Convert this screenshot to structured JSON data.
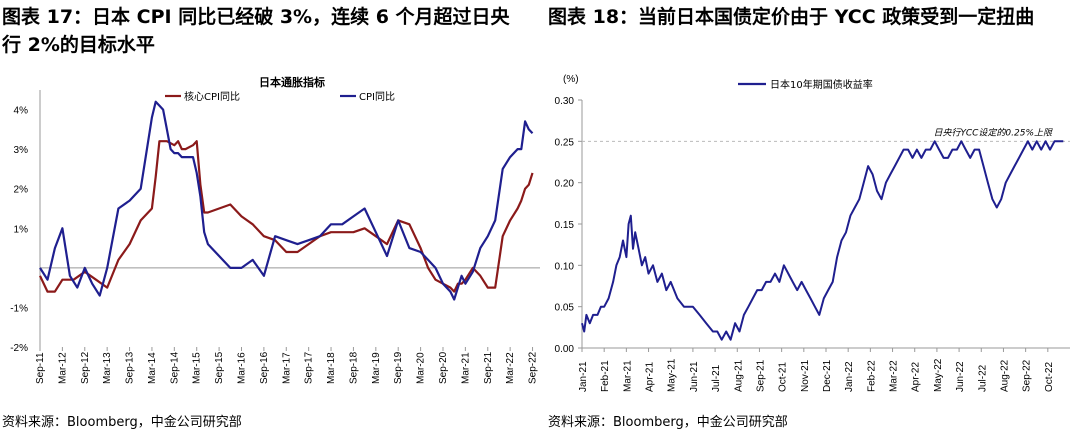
{
  "figures": [
    {
      "title": "图表 17：日本 CPI 同比已经破 3%，连续 6 个月超过日央行 2%的目标水平",
      "source": "资料来源：Bloomberg，中金公司研究部"
    },
    {
      "title": "图表 18：当前日本国债定价由于 YCC 政策受到一定扭曲",
      "source": "资料来源：Bloomberg，中金公司研究部"
    }
  ],
  "chart_data": [
    {
      "type": "line",
      "title": "日本通胀指标",
      "xlabel": "",
      "ylabel": "",
      "x_ticks": [
        "Sep-11",
        "Mar-12",
        "Sep-12",
        "Mar-13",
        "Sep-13",
        "Mar-14",
        "Sep-14",
        "Mar-15",
        "Sep-15",
        "Mar-16",
        "Sep-16",
        "Mar-17",
        "Sep-17",
        "Mar-18",
        "Sep-18",
        "Mar-19",
        "Sep-19",
        "Mar-20",
        "Sep-20",
        "Mar-21",
        "Sep-21",
        "Mar-22",
        "Sep-22"
      ],
      "y_ticks": [
        "4%",
        "3%",
        "2%",
        "1%",
        "-1%",
        "-2%"
      ],
      "y_tick_values": [
        4,
        3,
        2,
        1,
        -1,
        -2
      ],
      "ylim": [
        -2,
        5
      ],
      "legend_position": "top",
      "x": [
        0,
        6,
        12,
        18,
        24,
        30,
        36,
        42,
        48,
        54,
        60,
        66,
        72,
        78,
        84,
        90,
        96,
        102,
        108,
        114,
        120,
        126,
        132
      ],
      "series": [
        {
          "name": "核心CPI同比",
          "color": "#8B1A1A",
          "x": [
            0,
            2,
            4,
            6,
            9,
            12,
            15,
            18,
            21,
            24,
            27,
            30,
            31,
            32,
            33,
            34,
            36,
            37,
            38,
            39,
            41,
            42,
            43,
            44,
            45,
            48,
            51,
            54,
            57,
            60,
            63,
            66,
            69,
            72,
            75,
            78,
            81,
            84,
            87,
            90,
            93,
            96,
            99,
            102,
            104,
            106,
            108,
            110,
            111,
            112,
            113,
            114,
            116,
            118,
            120,
            122,
            124,
            126,
            128,
            129,
            130,
            131,
            132
          ],
          "values": [
            -0.2,
            -0.6,
            -0.6,
            -0.3,
            -0.3,
            -0.1,
            -0.3,
            -0.5,
            0.2,
            0.6,
            1.2,
            1.5,
            2.3,
            3.2,
            3.2,
            3.2,
            3.1,
            3.2,
            3.0,
            3.0,
            3.1,
            3.2,
            2.1,
            1.4,
            1.4,
            1.5,
            1.6,
            1.3,
            1.1,
            0.8,
            0.7,
            0.4,
            0.4,
            0.6,
            0.8,
            0.9,
            0.9,
            0.9,
            1.0,
            0.8,
            0.6,
            1.2,
            1.1,
            0.5,
            0.0,
            -0.3,
            -0.4,
            -0.5,
            -0.6,
            -0.4,
            -0.4,
            -0.3,
            0.0,
            -0.2,
            -0.5,
            -0.5,
            0.8,
            1.2,
            1.5,
            1.7,
            2.0,
            2.1,
            2.4
          ]
        },
        {
          "name": "CPI同比",
          "color": "#1F1F8F",
          "x": [
            0,
            2,
            4,
            6,
            8,
            10,
            12,
            14,
            16,
            18,
            21,
            24,
            27,
            30,
            31,
            32,
            33,
            34,
            35,
            36,
            37,
            38,
            39,
            41,
            42,
            43,
            44,
            45,
            48,
            51,
            54,
            57,
            60,
            63,
            66,
            69,
            72,
            75,
            78,
            81,
            84,
            87,
            90,
            93,
            96,
            99,
            102,
            104,
            106,
            108,
            110,
            111,
            112,
            113,
            114,
            116,
            118,
            120,
            122,
            124,
            126,
            128,
            129,
            130,
            131,
            132
          ],
          "values": [
            0.0,
            -0.3,
            0.5,
            1.0,
            -0.2,
            -0.5,
            0.0,
            -0.4,
            -0.7,
            0.0,
            1.5,
            1.7,
            2.0,
            3.8,
            4.2,
            4.1,
            4.0,
            3.5,
            3.0,
            2.9,
            2.9,
            2.8,
            2.8,
            2.8,
            2.4,
            1.8,
            0.9,
            0.6,
            0.3,
            0.0,
            0.0,
            0.2,
            -0.2,
            0.8,
            0.7,
            0.6,
            0.7,
            0.8,
            1.1,
            1.1,
            1.3,
            1.5,
            0.9,
            0.3,
            1.2,
            0.5,
            0.4,
            0.2,
            0.0,
            -0.4,
            -0.6,
            -0.8,
            -0.5,
            -0.2,
            -0.4,
            -0.1,
            0.5,
            0.8,
            1.2,
            2.5,
            2.8,
            3.0,
            3.0,
            3.7,
            3.5,
            3.4
          ]
        }
      ]
    },
    {
      "type": "line",
      "title": "",
      "xlabel": "",
      "ylabel": "(%)",
      "x_ticks": [
        "Jan-21",
        "Feb-21",
        "Mar-21",
        "Apr-21",
        "May-21",
        "Jun-21",
        "Jul-21",
        "Aug-21",
        "Sep-21",
        "Oct-21",
        "Nov-21",
        "Dec-21",
        "Jan-22",
        "Feb-22",
        "Mar-22",
        "Apr-22",
        "May-22",
        "Jun-22",
        "Jul-22",
        "Aug-22",
        "Sep-22",
        "Oct-22"
      ],
      "y_ticks": [
        "0.30",
        "0.25",
        "0.20",
        "0.15",
        "0.10",
        "0.05",
        "0.00"
      ],
      "y_tick_values": [
        0.3,
        0.25,
        0.2,
        0.15,
        0.1,
        0.05,
        0.0
      ],
      "ylim": [
        0.0,
        0.3
      ],
      "legend_position": "top-left",
      "reference_line": {
        "value": 0.25,
        "label": "日央行YCC设定的0.25%上限",
        "style": "dashed",
        "color": "#BBBBBB"
      },
      "series": [
        {
          "name": "日本10年期国债收益率",
          "color": "#1F1F8F",
          "x": [
            0,
            0.1,
            0.2,
            0.35,
            0.5,
            0.7,
            0.85,
            1.0,
            1.2,
            1.4,
            1.55,
            1.7,
            1.85,
            2.0,
            2.1,
            2.2,
            2.3,
            2.4,
            2.55,
            2.7,
            2.85,
            3.0,
            3.2,
            3.4,
            3.6,
            3.8,
            4.0,
            4.3,
            4.6,
            5.0,
            5.3,
            5.6,
            5.9,
            6.1,
            6.3,
            6.5,
            6.7,
            6.9,
            7.1,
            7.3,
            7.5,
            7.7,
            7.9,
            8.1,
            8.3,
            8.5,
            8.7,
            8.9,
            9.1,
            9.3,
            9.5,
            9.7,
            9.9,
            10.1,
            10.3,
            10.5,
            10.7,
            10.9,
            11.1,
            11.3,
            11.5,
            11.7,
            11.9,
            12.1,
            12.3,
            12.5,
            12.7,
            12.9,
            13.1,
            13.3,
            13.5,
            13.7,
            13.9,
            14.1,
            14.3,
            14.5,
            14.7,
            14.9,
            15.1,
            15.3,
            15.5,
            15.7,
            15.9,
            16.1,
            16.3,
            16.5,
            16.7,
            16.9,
            17.1,
            17.3,
            17.5,
            17.7,
            17.9,
            18.1,
            18.3,
            18.5,
            18.7,
            18.9,
            19.1,
            19.3,
            19.5,
            19.7,
            19.9,
            20.1,
            20.3,
            20.5,
            20.7,
            20.9,
            21.1,
            21.3,
            21.5,
            21.7
          ],
          "values": [
            0.03,
            0.02,
            0.04,
            0.03,
            0.04,
            0.04,
            0.05,
            0.05,
            0.06,
            0.08,
            0.1,
            0.11,
            0.13,
            0.11,
            0.15,
            0.16,
            0.12,
            0.14,
            0.12,
            0.1,
            0.11,
            0.09,
            0.1,
            0.08,
            0.09,
            0.07,
            0.08,
            0.06,
            0.05,
            0.05,
            0.04,
            0.03,
            0.02,
            0.02,
            0.01,
            0.02,
            0.01,
            0.03,
            0.02,
            0.04,
            0.05,
            0.06,
            0.07,
            0.07,
            0.08,
            0.08,
            0.09,
            0.08,
            0.1,
            0.09,
            0.08,
            0.07,
            0.08,
            0.07,
            0.06,
            0.05,
            0.04,
            0.06,
            0.07,
            0.08,
            0.11,
            0.13,
            0.14,
            0.16,
            0.17,
            0.18,
            0.2,
            0.22,
            0.21,
            0.19,
            0.18,
            0.2,
            0.21,
            0.22,
            0.23,
            0.24,
            0.24,
            0.23,
            0.24,
            0.23,
            0.24,
            0.24,
            0.25,
            0.24,
            0.23,
            0.23,
            0.24,
            0.24,
            0.25,
            0.24,
            0.23,
            0.24,
            0.24,
            0.22,
            0.2,
            0.18,
            0.17,
            0.18,
            0.2,
            0.21,
            0.22,
            0.23,
            0.24,
            0.25,
            0.24,
            0.25,
            0.24,
            0.25,
            0.24,
            0.25,
            0.25,
            0.25
          ]
        }
      ]
    }
  ]
}
